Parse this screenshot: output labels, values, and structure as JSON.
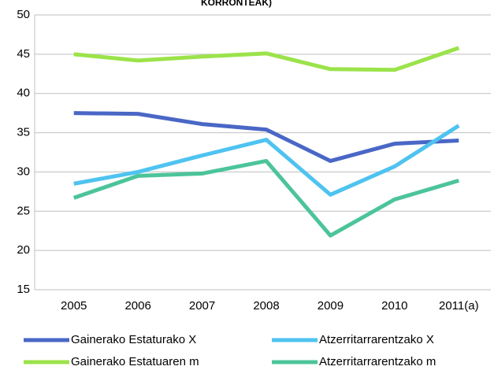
{
  "chart_data": {
    "type": "line",
    "title": "KORRONTEAK)",
    "categories": [
      "2005",
      "2006",
      "2007",
      "2008",
      "2009",
      "2010",
      "2011(a)"
    ],
    "series": [
      {
        "name": "Gainerako Estaturako X",
        "color": "#4a67c6",
        "values": [
          37.5,
          37.4,
          36.1,
          35.4,
          31.4,
          33.6,
          34.0
        ]
      },
      {
        "name": "Atzerritarrarentzako X",
        "color": "#4fc3f0",
        "values": [
          28.5,
          30.0,
          32.1,
          34.1,
          27.1,
          30.7,
          35.9
        ]
      },
      {
        "name": "Gainerako Estatuaren m",
        "color": "#9be34a",
        "values": [
          45.0,
          44.2,
          44.7,
          45.1,
          43.1,
          43.0,
          45.8
        ]
      },
      {
        "name": "Atzerritarrarentzako m",
        "color": "#4cc49a",
        "values": [
          26.7,
          29.5,
          29.8,
          31.4,
          21.9,
          26.5,
          28.9
        ]
      }
    ],
    "ylim": [
      15,
      50
    ],
    "yticks": [
      15,
      20,
      25,
      30,
      35,
      40,
      45,
      50
    ],
    "grid": true
  }
}
